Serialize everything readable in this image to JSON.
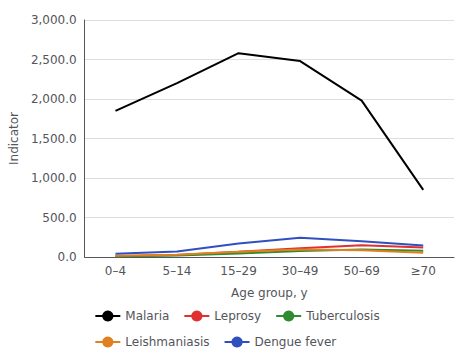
{
  "chart_data": {
    "type": "line",
    "xlabel": "Age group, y",
    "ylabel": "Indicator",
    "categories": [
      "0–4",
      "5–14",
      "15–29",
      "30–49",
      "50–69",
      "≥70"
    ],
    "series": [
      {
        "name": "Malaria",
        "color": "#000000",
        "values": [
          1850,
          2200,
          2580,
          2480,
          1980,
          850
        ]
      },
      {
        "name": "Leprosy",
        "color": "#e03030",
        "values": [
          10,
          25,
          65,
          110,
          150,
          120
        ]
      },
      {
        "name": "Tuberculosis",
        "color": "#2e8b2e",
        "values": [
          8,
          18,
          45,
          75,
          95,
          80
        ]
      },
      {
        "name": "Leishmaniasis",
        "color": "#e08020",
        "values": [
          15,
          30,
          65,
          95,
          85,
          55
        ]
      },
      {
        "name": "Dengue fever",
        "color": "#3050c0",
        "values": [
          40,
          70,
          170,
          245,
          200,
          145
        ]
      }
    ],
    "ylim": [
      0,
      3000
    ],
    "yticks": [
      {
        "value": 0,
        "label": "0.0"
      },
      {
        "value": 500,
        "label": "500.0"
      },
      {
        "value": 1000,
        "label": "1,000.0"
      },
      {
        "value": 1500,
        "label": "1,500.0"
      },
      {
        "value": 2000,
        "label": "2,000.0"
      },
      {
        "value": 2500,
        "label": "2,500.0"
      },
      {
        "value": 3000,
        "label": "3,000.0"
      }
    ],
    "grid": true,
    "legend": "bottom"
  }
}
